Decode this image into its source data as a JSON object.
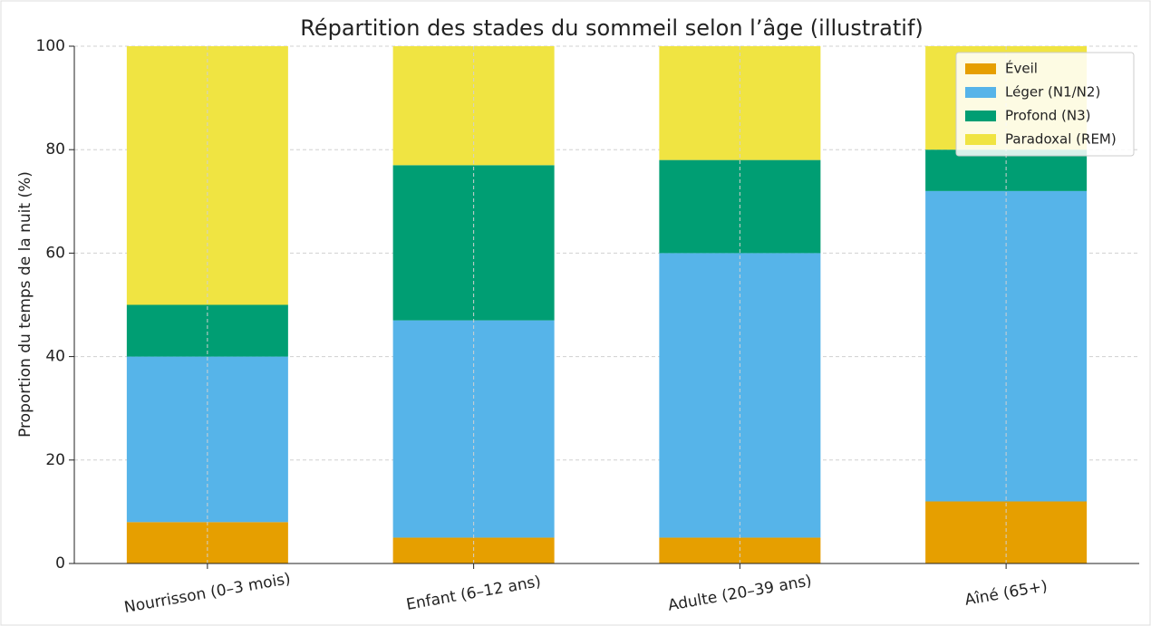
{
  "chart_data": {
    "type": "stacked_bar",
    "title": "Répartition des stades du sommeil selon l’âge (illustratif)",
    "ylabel": "Proportion du temps de la nuit (%)",
    "categories": [
      "Nourrisson (0–3 mois)",
      "Enfant (6–12 ans)",
      "Adulte (20–39 ans)",
      "Aîné (65+)"
    ],
    "series": [
      {
        "name": "Éveil",
        "color": "#E69F00",
        "values": [
          8,
          5,
          5,
          12
        ]
      },
      {
        "name": "Léger (N1/N2)",
        "color": "#56B4E9",
        "values": [
          32,
          42,
          55,
          60
        ]
      },
      {
        "name": "Profond (N3)",
        "color": "#009E73",
        "values": [
          10,
          30,
          18,
          8
        ]
      },
      {
        "name": "Paradoxal (REM)",
        "color": "#F0E442",
        "values": [
          50,
          23,
          22,
          20
        ]
      }
    ],
    "ylim": [
      0,
      100
    ],
    "yticks": [
      0,
      20,
      40,
      60,
      80,
      100
    ],
    "grid": true,
    "legend": "upper right"
  }
}
